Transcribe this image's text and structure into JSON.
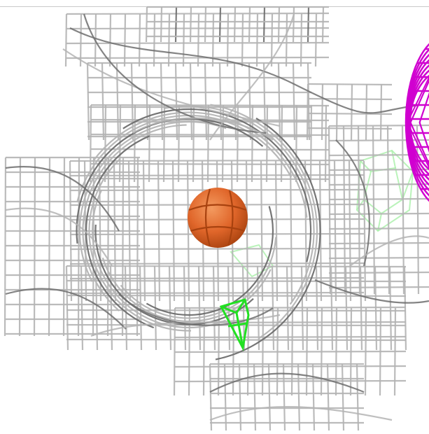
{
  "viewer": {
    "background": "#ffffff",
    "mesh_color": "#b4b4b4",
    "mesh_shadow_color": "#6e6e6e"
  },
  "objects": {
    "density_mesh": {
      "kind": "electron-density-mesh",
      "color": "#b4b4b4"
    },
    "ion_sphere": {
      "kind": "sphere",
      "color": "#e0662a",
      "highlight": "#f39a5f",
      "shade": "#a8420f"
    },
    "green_mesh_bright": {
      "kind": "mesh-fragment",
      "color": "#22e022"
    },
    "green_mesh_faint": {
      "kind": "mesh-fragment",
      "color": "#a9f0a9"
    },
    "magenta_mesh": {
      "kind": "mesh-fragment",
      "color": "#d000d0"
    }
  }
}
